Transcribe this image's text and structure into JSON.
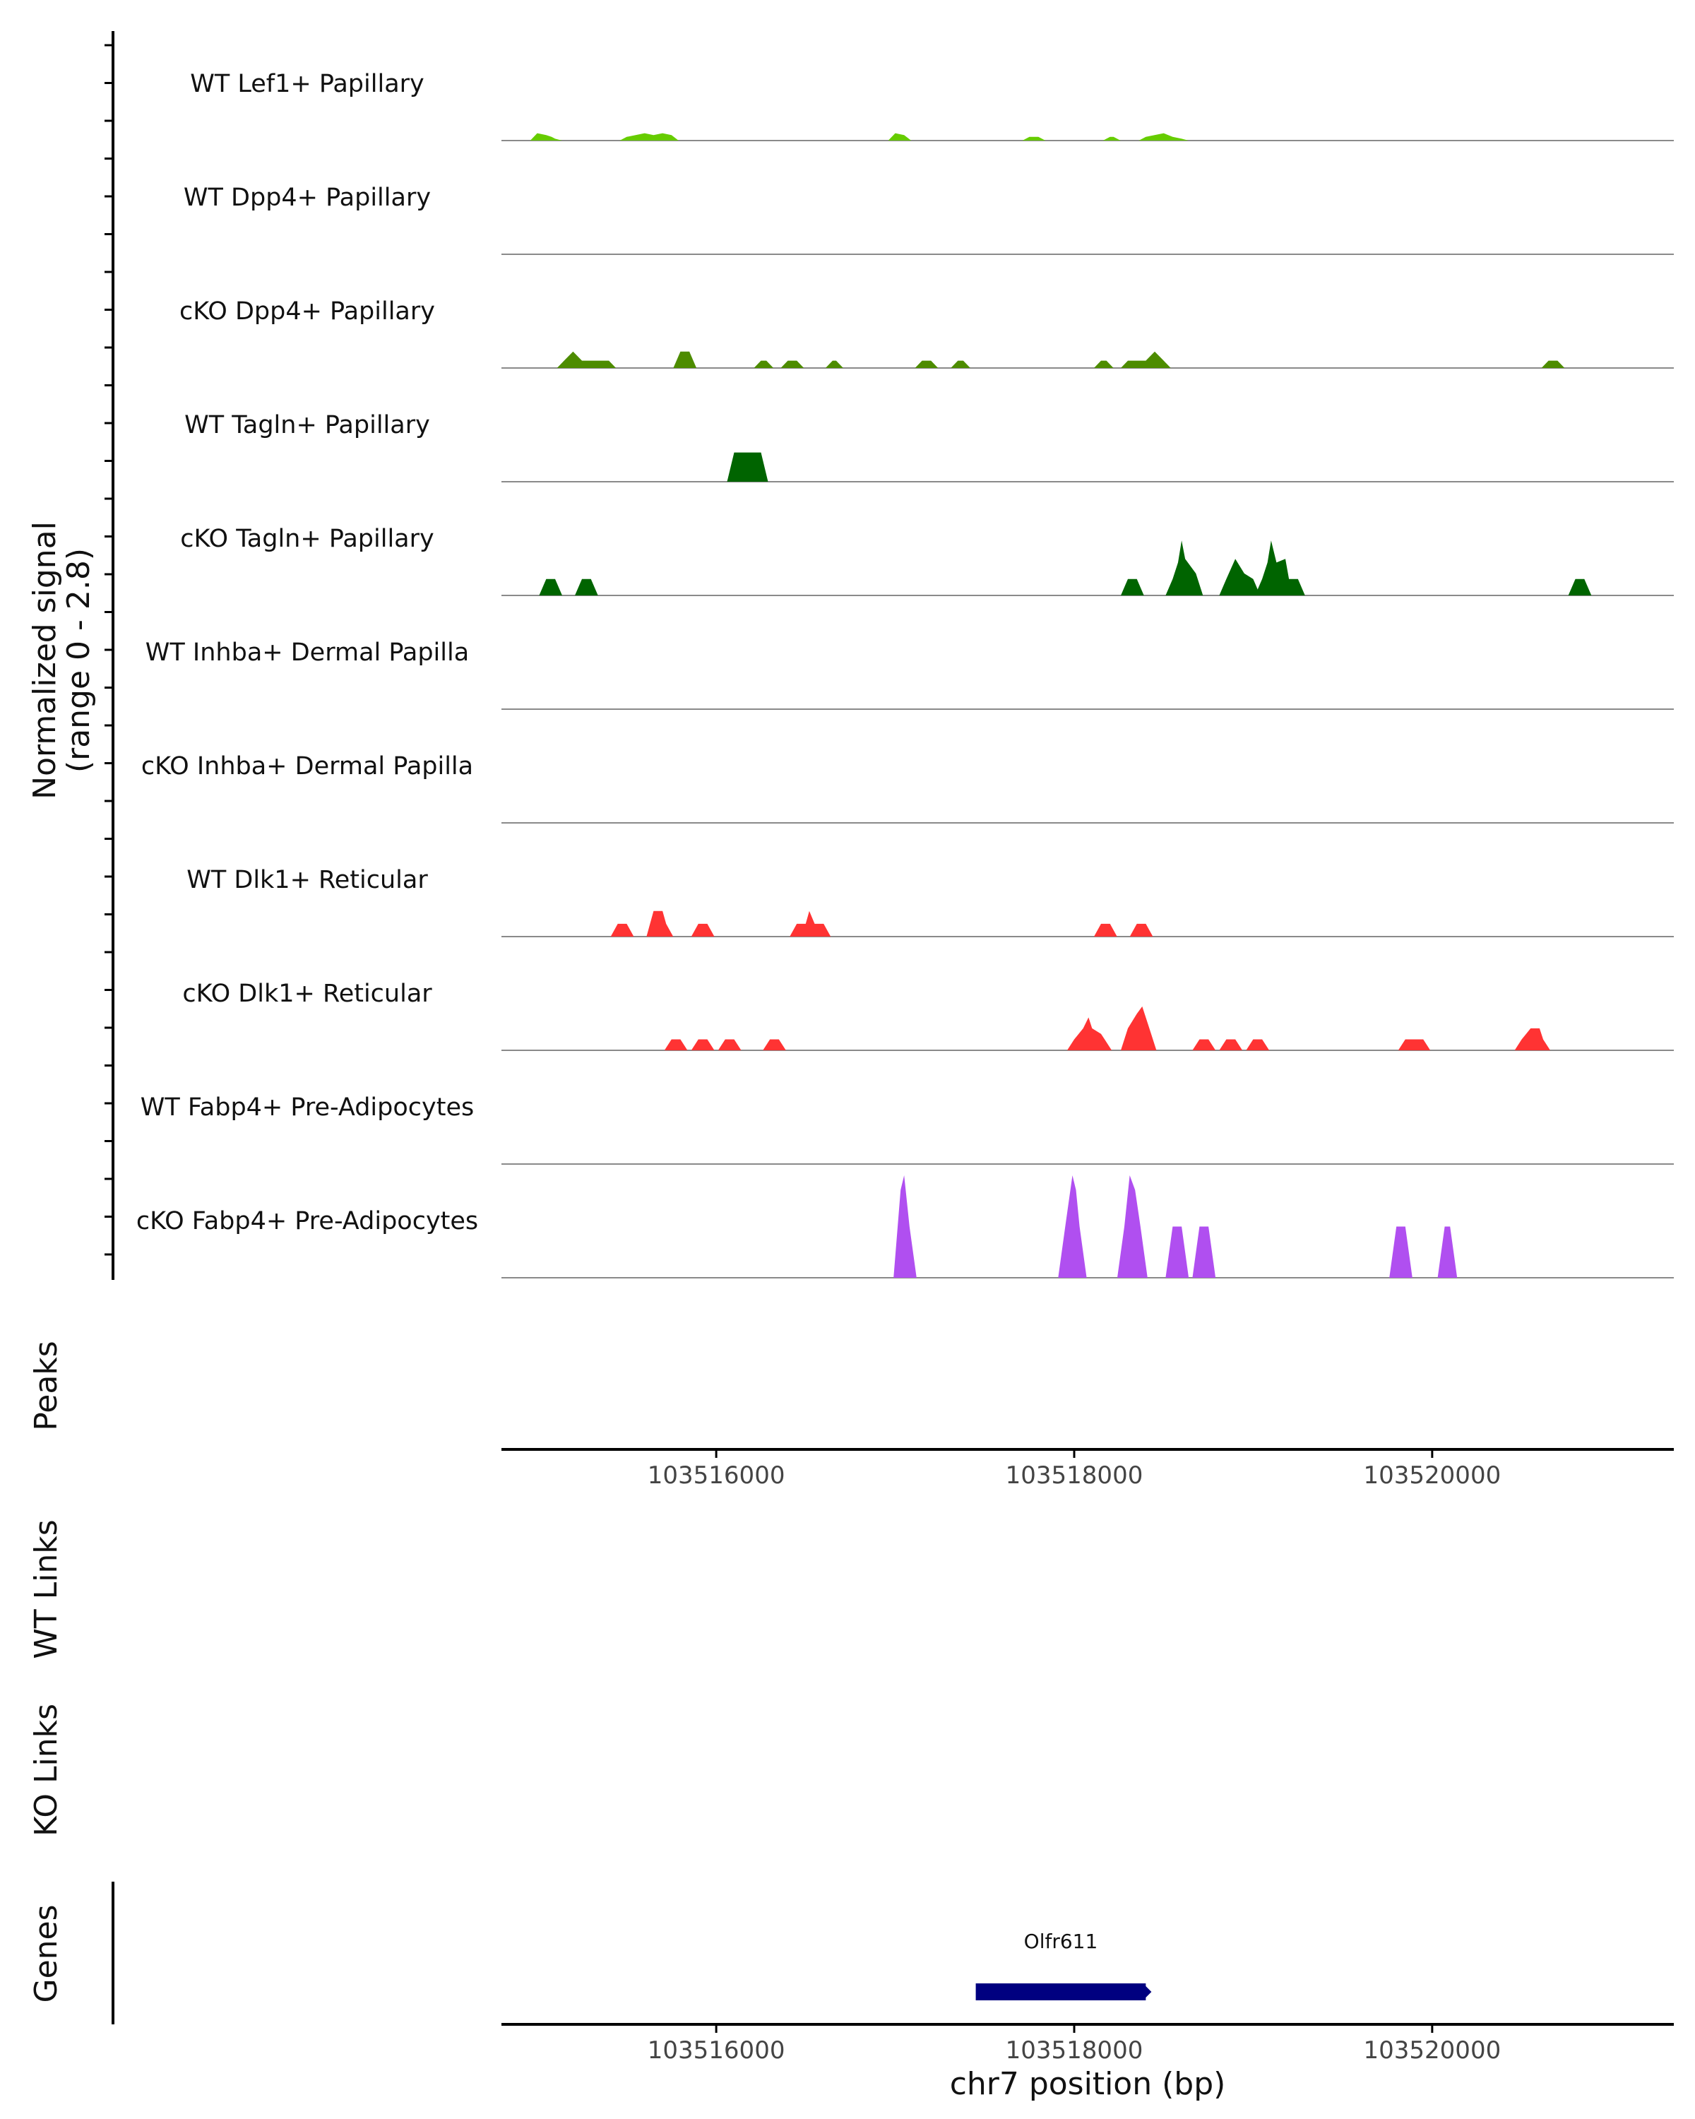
{
  "chart_data": {
    "type": "area",
    "chromosome": "chr7",
    "x_range": [
      103514800,
      103521350
    ],
    "signal_range": [
      0,
      2.8
    ],
    "y_axis_label": "Normalized signal",
    "y_axis_sublabel": "(range 0 - 2.8)",
    "tracks": [
      {
        "name": "WT Lef1+ Papillary",
        "color": "#66cc00",
        "segments": [
          [
            [
              103515000,
              0.2
            ],
            [
              103515050,
              0.15
            ],
            [
              103515080,
              0.1
            ],
            [
              103515100,
              0.05
            ]
          ],
          [
            [
              103515500,
              0.1
            ],
            [
              103515600,
              0.2
            ],
            [
              103515650,
              0.15
            ],
            [
              103515700,
              0.2
            ],
            [
              103515750,
              0.15
            ]
          ],
          [
            [
              103517000,
              0.2
            ],
            [
              103517050,
              0.15
            ]
          ],
          [
            [
              103517750,
              0.1
            ],
            [
              103517800,
              0.1
            ]
          ],
          [
            [
              103518200,
              0.1
            ],
            [
              103518220,
              0.1
            ]
          ],
          [
            [
              103518400,
              0.1
            ],
            [
              103518500,
              0.2
            ],
            [
              103518550,
              0.1
            ],
            [
              103518600,
              0.05
            ]
          ]
        ]
      },
      {
        "name": "WT Dpp4+ Papillary",
        "color": "#4d8c00",
        "segments": []
      },
      {
        "name": "cKO Dpp4+ Papillary",
        "color": "#4d8c00",
        "segments": [
          [
            [
              103515150,
              0.2
            ],
            [
              103515200,
              0.45
            ],
            [
              103515250,
              0.2
            ],
            [
              103515400,
              0.2
            ]
          ],
          [
            [
              103515800,
              0.45
            ],
            [
              103515850,
              0.45
            ]
          ],
          [
            [
              103516250,
              0.2
            ],
            [
              103516280,
              0.2
            ]
          ],
          [
            [
              103516400,
              0.2
            ],
            [
              103516450,
              0.2
            ]
          ],
          [
            [
              103516650,
              0.2
            ]
          ],
          [
            [
              103517150,
              0.2
            ],
            [
              103517200,
              0.2
            ]
          ],
          [
            [
              103517350,
              0.2
            ],
            [
              103517380,
              0.2
            ]
          ],
          [
            [
              103518150,
              0.2
            ],
            [
              103518180,
              0.2
            ]
          ],
          [
            [
              103518300,
              0.2
            ],
            [
              103518400,
              0.2
            ],
            [
              103518450,
              0.45
            ],
            [
              103518500,
              0.2
            ]
          ],
          [
            [
              103520650,
              0.2
            ],
            [
              103520700,
              0.2
            ]
          ]
        ]
      },
      {
        "name": "WT Tagln+ Papillary",
        "color": "#006400",
        "segments": [
          [
            [
              103516100,
              0.8
            ],
            [
              103516250,
              0.8
            ]
          ]
        ]
      },
      {
        "name": "cKO Tagln+ Papillary",
        "color": "#006400",
        "segments": [
          [
            [
              103515050,
              0.45
            ],
            [
              103515100,
              0.45
            ]
          ],
          [
            [
              103515250,
              0.45
            ],
            [
              103515300,
              0.45
            ]
          ],
          [
            [
              103518300,
              0.45
            ],
            [
              103518350,
              0.45
            ]
          ],
          [
            [
              103518550,
              0.45
            ],
            [
              103518580,
              0.9
            ],
            [
              103518600,
              1.5
            ],
            [
              103518620,
              1.0
            ],
            [
              103518680,
              0.6
            ]
          ],
          [
            [
              103518850,
              0.45
            ],
            [
              103518900,
              1.0
            ],
            [
              103518950,
              0.6
            ],
            [
              103519000,
              0.45
            ]
          ],
          [
            [
              103519050,
              0.45
            ],
            [
              103519080,
              0.9
            ],
            [
              103519100,
              1.5
            ],
            [
              103519130,
              0.9
            ],
            [
              103519180,
              1.0
            ],
            [
              103519200,
              0.45
            ],
            [
              103519250,
              0.45
            ]
          ],
          [
            [
              103520800,
              0.45
            ],
            [
              103520850,
              0.45
            ]
          ]
        ]
      },
      {
        "name": "WT Inhba+ Dermal Papilla",
        "color": "#006400",
        "segments": []
      },
      {
        "name": "cKO Inhba+ Dermal Papilla",
        "color": "#006400",
        "segments": []
      },
      {
        "name": "WT Dlk1+ Reticular",
        "color": "#ff3333",
        "segments": [
          [
            [
              103515450,
              0.35
            ],
            [
              103515500,
              0.35
            ]
          ],
          [
            [
              103515650,
              0.7
            ],
            [
              103515700,
              0.7
            ],
            [
              103515720,
              0.35
            ]
          ],
          [
            [
              103515900,
              0.35
            ],
            [
              103515950,
              0.35
            ]
          ],
          [
            [
              103516450,
              0.35
            ],
            [
              103516500,
              0.35
            ],
            [
              103516520,
              0.7
            ],
            [
              103516550,
              0.35
            ],
            [
              103516600,
              0.35
            ]
          ],
          [
            [
              103518150,
              0.35
            ],
            [
              103518200,
              0.35
            ]
          ],
          [
            [
              103518350,
              0.35
            ],
            [
              103518400,
              0.35
            ]
          ]
        ]
      },
      {
        "name": "cKO Dlk1+ Reticular",
        "color": "#ff3333",
        "segments": [
          [
            [
              103515750,
              0.3
            ],
            [
              103515800,
              0.3
            ]
          ],
          [
            [
              103515900,
              0.3
            ],
            [
              103515950,
              0.3
            ]
          ],
          [
            [
              103516050,
              0.3
            ],
            [
              103516100,
              0.3
            ]
          ],
          [
            [
              103516300,
              0.3
            ],
            [
              103516350,
              0.3
            ]
          ],
          [
            [
              103518000,
              0.3
            ],
            [
              103518050,
              0.6
            ],
            [
              103518080,
              0.9
            ],
            [
              103518100,
              0.6
            ],
            [
              103518150,
              0.45
            ],
            [
              103518170,
              0.3
            ]
          ],
          [
            [
              103518300,
              0.6
            ],
            [
              103518350,
              1.0
            ],
            [
              103518380,
              1.2
            ],
            [
              103518420,
              0.6
            ]
          ],
          [
            [
              103518700,
              0.3
            ],
            [
              103518750,
              0.3
            ]
          ],
          [
            [
              103518850,
              0.3
            ],
            [
              103518900,
              0.3
            ]
          ],
          [
            [
              103519000,
              0.3
            ],
            [
              103519050,
              0.3
            ]
          ],
          [
            [
              103519850,
              0.3
            ],
            [
              103519950,
              0.3
            ]
          ],
          [
            [
              103520500,
              0.3
            ],
            [
              103520550,
              0.6
            ],
            [
              103520600,
              0.6
            ],
            [
              103520620,
              0.3
            ]
          ]
        ]
      },
      {
        "name": "WT Fabp4+ Pre-Adipocytes",
        "color": "#b04ff0",
        "segments": []
      },
      {
        "name": "cKO Fabp4+ Pre-Adipocytes",
        "color": "#b04ff0",
        "segments": [
          [
            [
              103517030,
              2.4
            ],
            [
              103517050,
              2.8
            ],
            [
              103517080,
              1.4
            ]
          ],
          [
            [
              103517950,
              1.4
            ],
            [
              103517990,
              2.8
            ],
            [
              103518010,
              2.4
            ],
            [
              103518030,
              1.4
            ]
          ],
          [
            [
              103518280,
              1.4
            ],
            [
              103518310,
              2.8
            ],
            [
              103518340,
              2.4
            ],
            [
              103518370,
              1.4
            ]
          ],
          [
            [
              103518550,
              1.4
            ],
            [
              103518600,
              1.4
            ]
          ],
          [
            [
              103518700,
              1.4
            ],
            [
              103518750,
              1.4
            ]
          ],
          [
            [
              103519800,
              1.4
            ],
            [
              103519850,
              1.4
            ]
          ],
          [
            [
              103520070,
              1.4
            ],
            [
              103520100,
              1.4
            ]
          ]
        ]
      }
    ],
    "side_labels": {
      "peaks": "Peaks",
      "wt_links": "WT Links",
      "ko_links": "KO Links",
      "genes": "Genes"
    },
    "x_ticks": [
      103516000,
      103518000,
      103520000
    ],
    "x_tick_labels": [
      "103516000",
      "103518000",
      "103520000"
    ],
    "x_axis_label": "chr7 position (bp)",
    "genes": [
      {
        "name": "Olfr611",
        "start": 103517450,
        "end": 103518400,
        "color": "#000080"
      }
    ]
  }
}
